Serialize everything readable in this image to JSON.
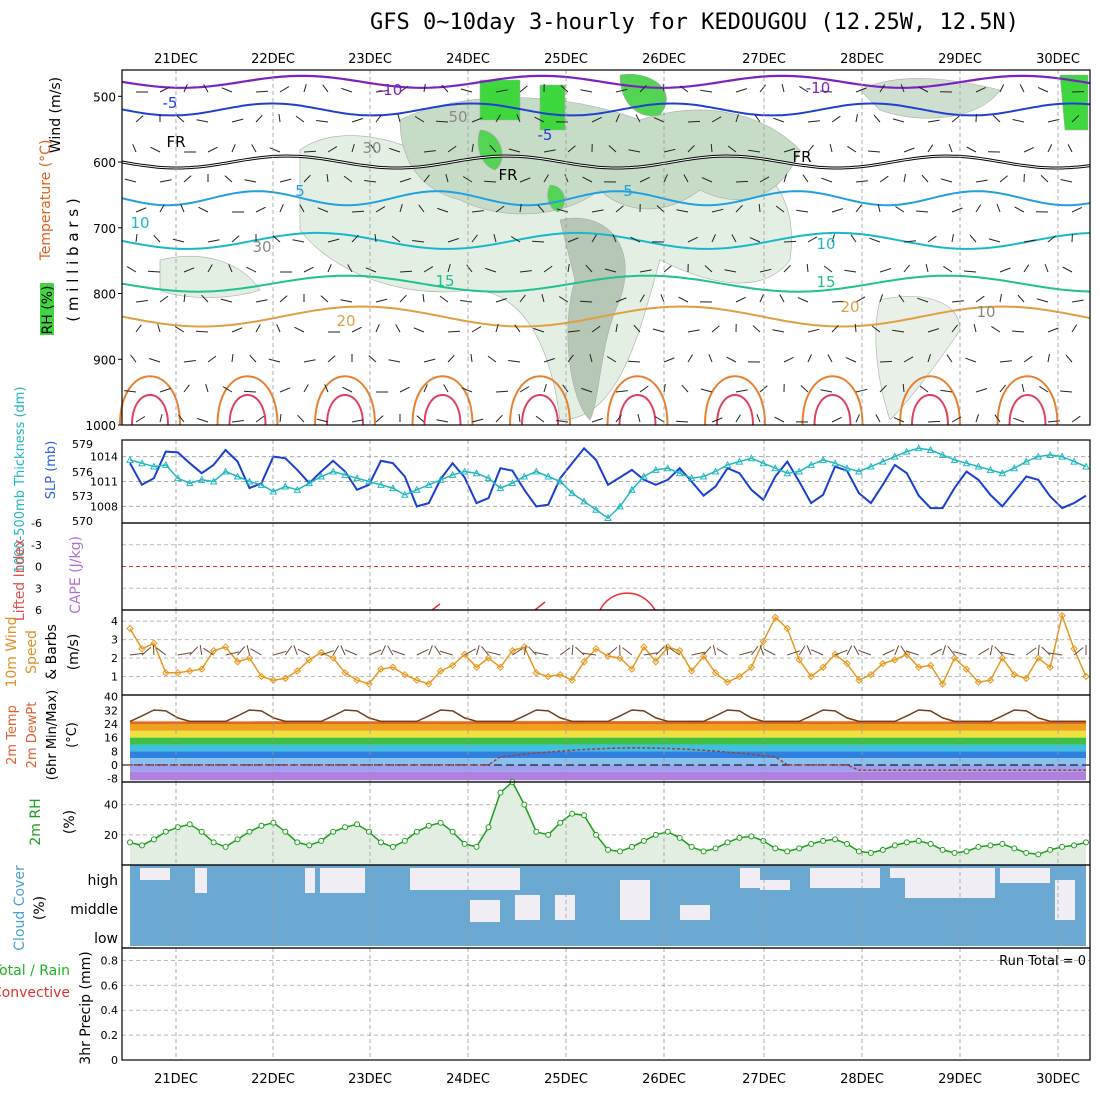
{
  "title": "GFS 0~10day 3-hourly for KEDOUGOU (12.25W, 12.5N)",
  "days": [
    "21DEC",
    "22DEC",
    "23DEC",
    "24DEC",
    "25DEC",
    "26DEC",
    "27DEC",
    "28DEC",
    "29DEC",
    "30DEC"
  ],
  "panels": {
    "upper": {
      "ylabel_wind": "Wind (m/s)",
      "ylabel_temp": "Temperature (°C)",
      "ylabel_rh": "RH (%)",
      "ylabel_mb": "( m i l l i b a r s )",
      "ticks": [
        "500",
        "600",
        "700",
        "800",
        "900",
        "1000"
      ],
      "contour_labels": [
        "-10",
        "-10",
        "-5",
        "-5",
        "5",
        "5",
        "10",
        "10",
        "15",
        "15",
        "20",
        "20",
        "FR",
        "FR",
        "FR",
        "30",
        "30",
        "50",
        "10"
      ]
    },
    "slp": {
      "ylabel_thk": "1000-500mb Thickness (dm)",
      "ylabel_slp": "SLP (mb)",
      "thk_ticks": [
        "579",
        "576",
        "573",
        "570"
      ],
      "slp_ticks": [
        "1014",
        "1011",
        "1008"
      ]
    },
    "li": {
      "ylabel_li": "Lifted Index",
      "ylabel_cape": "CAPE (J/kg)",
      "ticks": [
        "-6",
        "-3",
        "0",
        "3",
        "6"
      ]
    },
    "wind10": {
      "ylabel_a": "10m Wind",
      "ylabel_b": "Speed",
      "ylabel_c": "& Barbs",
      "ylabel_d": "(m/s)",
      "ticks": [
        "4",
        "3",
        "2",
        "1"
      ]
    },
    "temp": {
      "ylabel_a": "2m Temp",
      "ylabel_b": "2m DewPt",
      "ylabel_c": "(6hr Min/Max)",
      "ylabel_d": "(°C)",
      "ticks": [
        "40",
        "32",
        "24",
        "16",
        "8",
        "0",
        "-8"
      ]
    },
    "rh2m": {
      "ylabel_a": "2m RH",
      "ylabel_b": "(%)",
      "ticks": [
        "40",
        "20"
      ]
    },
    "cloud": {
      "ylabel_a": "Cloud Cover",
      "ylabel_b": "(%)",
      "levels": [
        "high",
        "middle",
        "low"
      ]
    },
    "precip": {
      "ylabel_a": "Total / Rain",
      "ylabel_b": "Convective",
      "ylabel_c": "3hr Precip (mm)",
      "run_total": "Run Total = 0",
      "ticks": [
        "0.8",
        "0.6",
        "0.4",
        "0.2",
        "0"
      ]
    }
  },
  "colors": {
    "slp": "#1a3fd1",
    "thickness": "#20b8c0",
    "wind10": "#e8981e",
    "rh2m": "#1e9e1e",
    "cloud": "#6ba9d2",
    "li": "#e83030",
    "cape": "#b060d0"
  },
  "chart_data": [
    {
      "type": "line",
      "title": "SLP (mb)",
      "x": [
        0,
        1,
        2,
        3,
        4,
        5,
        6,
        7,
        8,
        9,
        10,
        11,
        12,
        13,
        14,
        15,
        16,
        17,
        18,
        19,
        20,
        21,
        22,
        23,
        24,
        25,
        26,
        27,
        28,
        29,
        30,
        31,
        32,
        33,
        34,
        35,
        36,
        37,
        38,
        39,
        40,
        41,
        42,
        43,
        44,
        45,
        46,
        47,
        48,
        49,
        50,
        51,
        52,
        53,
        54,
        55,
        56,
        57,
        58,
        59,
        60,
        61,
        62,
        63,
        64,
        65,
        66,
        67,
        68,
        69,
        70,
        71,
        72,
        73,
        74,
        75,
        76,
        77,
        78,
        79,
        80
      ],
      "series": [
        {
          "name": "SLP (mb)",
          "values": [
            1013.2,
            1010.6,
            1011.4,
            1014.6,
            1014.5,
            1013.2,
            1012.0,
            1013.0,
            1014.8,
            1013.4,
            1010.2,
            1010.8,
            1014.0,
            1013.8,
            1012.4,
            1010.8,
            1012.2,
            1013.5,
            1012.2,
            1010.0,
            1010.6,
            1013.5,
            1013.2,
            1011.6,
            1008.0,
            1008.4,
            1011.3,
            1013.2,
            1011.5,
            1008.4,
            1009.0,
            1012.6,
            1012.3,
            1010.0,
            1008.0,
            1008.2,
            1011.4,
            1013.2,
            1015.0,
            1013.6,
            1010.6,
            1011.5,
            1012.4,
            1011.2,
            1010.6,
            1011.2,
            1012.6,
            1011.0,
            1009.3,
            1010.4,
            1012.6,
            1012.0,
            1010.0,
            1008.8,
            1011.6,
            1013.4,
            1011.0,
            1008.4,
            1009.4,
            1012.8,
            1012.3,
            1009.6,
            1008.4,
            1010.6,
            1013.0,
            1012.0,
            1009.3,
            1007.8,
            1007.8,
            1010.2,
            1012.2,
            1011.2,
            1009.4,
            1008.0,
            1009.8,
            1011.6,
            1011.2,
            1009.2,
            1007.8,
            1008.4,
            1009.3
          ]
        },
        {
          "name": "1000-500mb Thickness (dm)",
          "values": [
            577.6,
            577.2,
            576.8,
            577.0,
            575.4,
            574.8,
            575.2,
            575.0,
            576.2,
            575.6,
            575.0,
            574.6,
            573.8,
            574.4,
            574.0,
            574.8,
            575.6,
            576.2,
            575.8,
            575.4,
            575.0,
            574.6,
            574.2,
            573.4,
            574.0,
            574.6,
            575.2,
            575.8,
            576.2,
            576.0,
            575.4,
            574.2,
            574.8,
            575.6,
            576.2,
            575.6,
            575.0,
            573.6,
            572.6,
            571.6,
            570.6,
            572.0,
            574.0,
            575.6,
            576.4,
            576.6,
            576.0,
            575.4,
            575.6,
            576.2,
            577.0,
            577.4,
            577.8,
            577.2,
            576.6,
            576.0,
            576.2,
            577.0,
            577.6,
            577.2,
            576.6,
            576.2,
            576.8,
            577.4,
            578.0,
            578.6,
            579.0,
            578.8,
            578.2,
            577.6,
            577.2,
            576.8,
            576.4,
            576.0,
            576.6,
            577.4,
            578.0,
            578.2,
            578.0,
            577.4,
            576.8
          ]
        }
      ],
      "ylim": [
        570,
        580
      ]
    },
    {
      "type": "line",
      "title": "10m Wind Speed (m/s)",
      "x": [
        0,
        1,
        2,
        3,
        4,
        5,
        6,
        7,
        8,
        9,
        10,
        11,
        12,
        13,
        14,
        15,
        16,
        17,
        18,
        19,
        20,
        21,
        22,
        23,
        24,
        25,
        26,
        27,
        28,
        29,
        30,
        31,
        32,
        33,
        34,
        35,
        36,
        37,
        38,
        39,
        40,
        41,
        42,
        43,
        44,
        45,
        46,
        47,
        48,
        49,
        50,
        51,
        52,
        53,
        54,
        55,
        56,
        57,
        58,
        59,
        60,
        61,
        62,
        63,
        64,
        65,
        66,
        67,
        68,
        69,
        70,
        71,
        72,
        73,
        74,
        75,
        76,
        77,
        78,
        79,
        80
      ],
      "series": [
        {
          "name": "10m Wind Speed",
          "values": [
            3.6,
            2.5,
            2.8,
            1.2,
            1.2,
            1.3,
            1.4,
            2.4,
            2.6,
            1.8,
            2.0,
            1.0,
            0.8,
            0.9,
            1.3,
            1.9,
            2.3,
            2.0,
            1.2,
            0.8,
            0.6,
            1.4,
            1.5,
            1.1,
            0.8,
            0.6,
            1.3,
            1.6,
            2.2,
            1.5,
            2.0,
            1.5,
            2.4,
            2.6,
            1.2,
            1.0,
            1.1,
            0.8,
            1.8,
            2.5,
            2.1,
            2.0,
            1.4,
            2.6,
            1.8,
            2.6,
            2.4,
            1.3,
            2.1,
            1.2,
            0.7,
            1.0,
            1.5,
            2.9,
            4.2,
            3.6,
            1.9,
            1.0,
            1.5,
            2.2,
            1.7,
            0.8,
            1.1,
            1.7,
            1.9,
            2.2,
            1.5,
            1.6,
            0.6,
            2.0,
            1.4,
            0.7,
            0.8,
            2.0,
            1.1,
            0.9,
            2.0,
            1.5,
            4.3,
            2.5,
            1.0
          ]
        }
      ],
      "ylim": [
        0,
        4.6
      ]
    },
    {
      "type": "line",
      "title": "2m RH (%)",
      "x": [
        0,
        1,
        2,
        3,
        4,
        5,
        6,
        7,
        8,
        9,
        10,
        11,
        12,
        13,
        14,
        15,
        16,
        17,
        18,
        19,
        20,
        21,
        22,
        23,
        24,
        25,
        26,
        27,
        28,
        29,
        30,
        31,
        32,
        33,
        34,
        35,
        36,
        37,
        38,
        39,
        40,
        41,
        42,
        43,
        44,
        45,
        46,
        47,
        48,
        49,
        50,
        51,
        52,
        53,
        54,
        55,
        56,
        57,
        58,
        59,
        60,
        61,
        62,
        63,
        64,
        65,
        66,
        67,
        68,
        69,
        70,
        71,
        72,
        73,
        74,
        75,
        76,
        77,
        78,
        79,
        80
      ],
      "series": [
        {
          "name": "2m RH",
          "values": [
            15,
            13,
            17,
            22,
            25,
            27,
            22,
            15,
            12,
            17,
            22,
            26,
            28,
            22,
            15,
            13,
            16,
            22,
            25,
            27,
            22,
            15,
            12,
            16,
            22,
            26,
            28,
            22,
            14,
            12,
            25,
            48,
            55,
            40,
            22,
            20,
            28,
            34,
            33,
            20,
            10,
            9,
            12,
            16,
            20,
            22,
            18,
            12,
            9,
            11,
            15,
            18,
            19,
            16,
            11,
            9,
            11,
            14,
            16,
            17,
            14,
            9,
            8,
            10,
            13,
            15,
            16,
            14,
            10,
            8,
            9,
            12,
            13,
            14,
            11,
            8,
            7,
            10,
            12,
            13,
            15
          ]
        }
      ],
      "ylim": [
        0,
        55
      ]
    }
  ]
}
